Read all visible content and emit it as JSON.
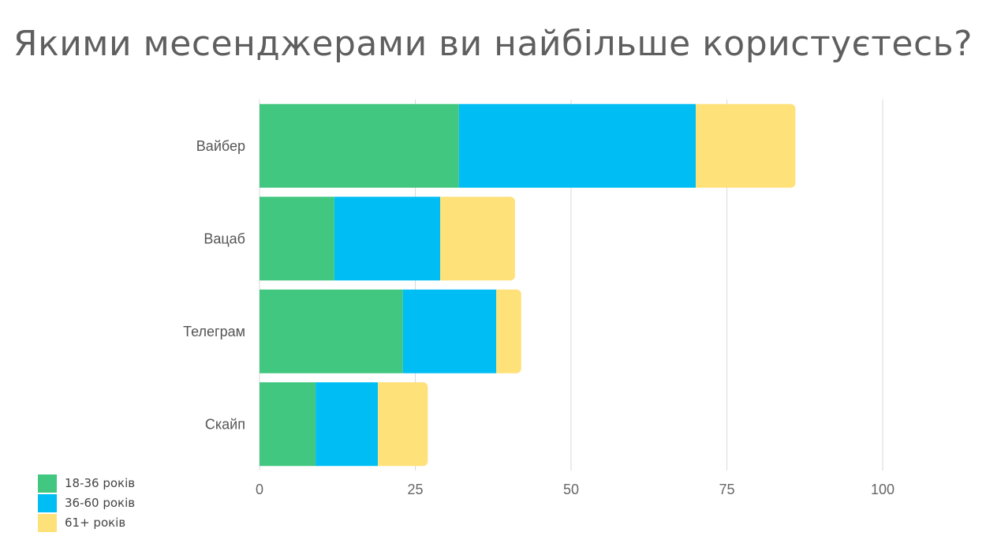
{
  "title": "Якими месенджерами ви найбільше користуєтесь?",
  "chart_data": {
    "type": "bar",
    "orientation": "horizontal",
    "stacked": true,
    "title": "Якими месенджерами ви найбільше користуєтесь?",
    "categories": [
      "Вайбер",
      "Вацаб",
      "Телеграм",
      "Скайп"
    ],
    "series": [
      {
        "name": "18-36 років",
        "color": "#41c77f",
        "values": [
          32,
          12,
          23,
          9
        ]
      },
      {
        "name": "36-60 років",
        "color": "#00bef3",
        "values": [
          38,
          17,
          15,
          10
        ]
      },
      {
        "name": "61+ років",
        "color": "#ffe17a",
        "values": [
          16,
          12,
          4,
          8
        ]
      }
    ],
    "xlim": [
      0,
      100
    ],
    "xticks": [
      0,
      25,
      50,
      75,
      100
    ],
    "grid": true,
    "legend_position": "bottom-left"
  }
}
